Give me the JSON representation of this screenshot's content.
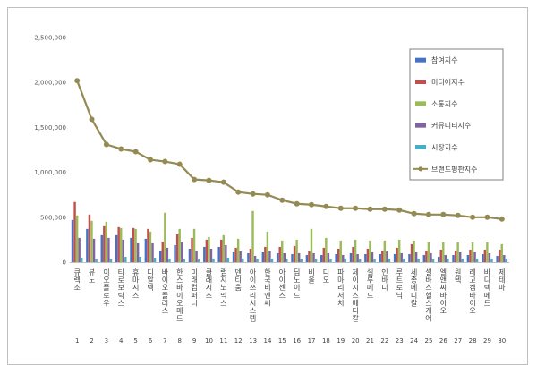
{
  "chart_data": {
    "type": "bar",
    "ylim": [
      0,
      2500000
    ],
    "yticks": [
      0,
      500000,
      1000000,
      1500000,
      2000000,
      2500000
    ],
    "ytick_labels": [
      "0",
      "500,000",
      "1,000,000",
      "1,500,000",
      "2,000,000",
      "2,500,000"
    ],
    "grid": false,
    "legend_position": "right",
    "numbers": [
      "1",
      "2",
      "3",
      "4",
      "5",
      "6",
      "7",
      "8",
      "9",
      "10",
      "11",
      "12",
      "13",
      "14",
      "15",
      "16",
      "17",
      "18",
      "19",
      "20",
      "21",
      "22",
      "23",
      "24",
      "25",
      "26",
      "27",
      "28",
      "29",
      "30"
    ],
    "categories": [
      "큐렉소",
      "뷰노",
      "이오플로우",
      "티로보틱스",
      "휴마시스",
      "디알텍",
      "바이오플러스",
      "한스바이오메드",
      "미래컴퍼니",
      "클래시스",
      "랩지노믹스",
      "덴티움",
      "아이쓰리시스템",
      "한국비엔씨",
      "아이센스",
      "딥노이드",
      "비올",
      "디오",
      "파마리서치",
      "제이시스메디칼",
      "셀루메드",
      "인바디",
      "루트로닉",
      "세종메디칼",
      "셀바스헬스케어",
      "엘앤씨바이오",
      "원텍",
      "레고켐바이오",
      "바디텍메드",
      "제테마"
    ],
    "series": [
      {
        "name": "참여지수",
        "type": "bar",
        "color": "#4472c4",
        "values": [
          470000,
          370000,
          300000,
          300000,
          270000,
          260000,
          130000,
          190000,
          150000,
          170000,
          170000,
          110000,
          100000,
          110000,
          100000,
          90000,
          80000,
          80000,
          90000,
          100000,
          90000,
          90000,
          90000,
          90000,
          80000,
          60000,
          80000,
          80000,
          90000,
          70000
        ]
      },
      {
        "name": "미디어지수",
        "type": "bar",
        "color": "#c0504d",
        "values": [
          670000,
          530000,
          400000,
          390000,
          380000,
          370000,
          230000,
          310000,
          270000,
          250000,
          250000,
          160000,
          150000,
          170000,
          170000,
          180000,
          120000,
          160000,
          150000,
          170000,
          150000,
          130000,
          160000,
          200000,
          130000,
          140000,
          130000,
          140000,
          140000,
          140000
        ]
      },
      {
        "name": "소통지수",
        "type": "bar",
        "color": "#9bbb59",
        "values": [
          520000,
          460000,
          450000,
          380000,
          370000,
          340000,
          550000,
          370000,
          370000,
          280000,
          300000,
          260000,
          570000,
          340000,
          240000,
          250000,
          370000,
          270000,
          240000,
          250000,
          240000,
          240000,
          250000,
          240000,
          220000,
          220000,
          220000,
          220000,
          220000,
          200000
        ]
      },
      {
        "name": "커뮤니티지수",
        "type": "bar",
        "color": "#8064a2",
        "values": [
          270000,
          260000,
          270000,
          250000,
          210000,
          210000,
          160000,
          220000,
          130000,
          150000,
          190000,
          120000,
          70000,
          120000,
          100000,
          100000,
          100000,
          100000,
          80000,
          90000,
          110000,
          120000,
          100000,
          110000,
          100000,
          80000,
          110000,
          110000,
          100000,
          80000
        ]
      },
      {
        "name": "시장지수",
        "type": "bar",
        "color": "#4bacc6",
        "values": [
          50000,
          30000,
          30000,
          60000,
          60000,
          50000,
          40000,
          30000,
          30000,
          40000,
          50000,
          40000,
          30000,
          40000,
          30000,
          30000,
          30000,
          30000,
          40000,
          30000,
          30000,
          40000,
          40000,
          40000,
          30000,
          40000,
          40000,
          40000,
          40000,
          40000
        ]
      },
      {
        "name": "브랜드평판지수",
        "type": "line",
        "color": "#948a54",
        "values": [
          2020000,
          1590000,
          1310000,
          1260000,
          1230000,
          1140000,
          1120000,
          1090000,
          920000,
          910000,
          890000,
          780000,
          760000,
          750000,
          690000,
          650000,
          640000,
          620000,
          600000,
          600000,
          590000,
          590000,
          580000,
          540000,
          530000,
          530000,
          520000,
          500000,
          500000,
          480000
        ]
      }
    ]
  }
}
